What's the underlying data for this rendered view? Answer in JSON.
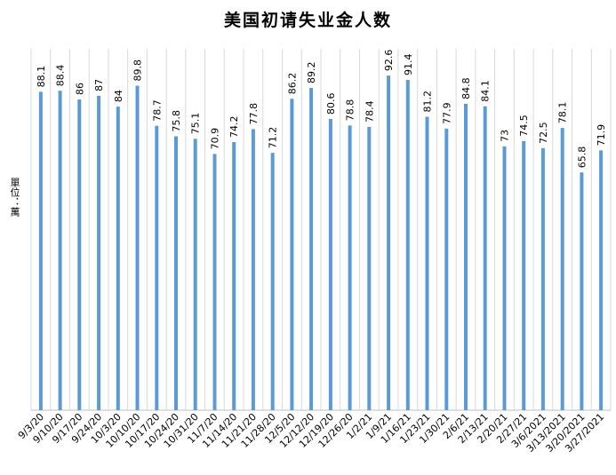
{
  "chart_data": {
    "type": "bar",
    "title": "美国初请失业金人数",
    "ylabel": "單位：萬",
    "xlabel": "",
    "ylim": [
      0,
      100
    ],
    "grid": "vertical",
    "colors": {
      "bar": "#5b9bd5",
      "grid": "#d9d9d9"
    },
    "categories": [
      "9/3/20",
      "9/10/20",
      "9/17/20",
      "9/24/20",
      "10/3/20",
      "10/10/20",
      "10/17/20",
      "10/24/20",
      "10/31/20",
      "11/7/20",
      "11/14/20",
      "11/21/20",
      "11/28/20",
      "12/5/20",
      "12/12/20",
      "12/19/20",
      "12/26/20",
      "1/2/21",
      "1/9/21",
      "1/16/21",
      "1/23/21",
      "1/30/21",
      "2/6/21",
      "2/13/21",
      "2/20/21",
      "2/27/21",
      "3/6/2021",
      "3/13/2021",
      "3/20/2021",
      "3/27/2021"
    ],
    "values": [
      88.1,
      88.4,
      86,
      87,
      84,
      89.8,
      78.7,
      75.8,
      75.1,
      70.9,
      74.2,
      77.8,
      71.2,
      86.2,
      89.2,
      80.6,
      78.8,
      78.4,
      92.6,
      91.4,
      81.2,
      77.9,
      84.8,
      84.1,
      73,
      74.5,
      72.5,
      78.1,
      65.8,
      71.9
    ],
    "data_labels": [
      "88.1",
      "88.4",
      "86",
      "87",
      "84",
      "89.8",
      "78.7",
      "75.8",
      "75.1",
      "70.9",
      "74.2",
      "77.8",
      "71.2",
      "86.2",
      "89.2",
      "80.6",
      "78.8",
      "78.4",
      "92.6",
      "91.4",
      "81.2",
      "77.9",
      "84.8",
      "84.1",
      "73",
      "74.5",
      "72.5",
      "78.1",
      "65.8",
      "71.9"
    ]
  }
}
